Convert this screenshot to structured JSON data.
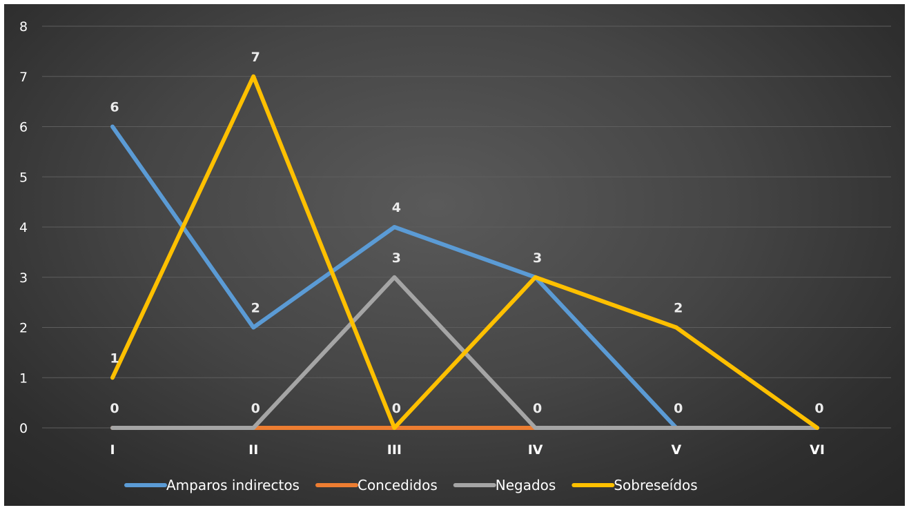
{
  "chart_data": {
    "type": "line",
    "title": "",
    "xlabel": "",
    "ylabel": "",
    "categories": [
      "I",
      "II",
      "III",
      "IV",
      "V",
      "VI"
    ],
    "ylim": [
      0,
      8
    ],
    "yticks": [
      "0",
      "1",
      "2",
      "3",
      "4",
      "5",
      "6",
      "7",
      "8"
    ],
    "grid": true,
    "legend_position": "bottom",
    "series": [
      {
        "name": "Amparos indirectos",
        "color": "#5b9bd5",
        "values": [
          6,
          2,
          4,
          3,
          0,
          0
        ]
      },
      {
        "name": "Concedidos",
        "color": "#ed7d31",
        "values": [
          0,
          0,
          0,
          0,
          0,
          0
        ]
      },
      {
        "name": "Negados",
        "color": "#a5a5a5",
        "values": [
          0,
          0,
          3,
          0,
          0,
          0
        ]
      },
      {
        "name": "Sobreseídos",
        "color": "#ffc000",
        "values": [
          1,
          7,
          0,
          3,
          2,
          0
        ]
      }
    ],
    "data_labels": [
      {
        "category": "I",
        "text": "6"
      },
      {
        "category": "I",
        "text": "1"
      },
      {
        "category": "I",
        "text": "0"
      },
      {
        "category": "II",
        "text": "7"
      },
      {
        "category": "II",
        "text": "2"
      },
      {
        "category": "II",
        "text": "0"
      },
      {
        "category": "III",
        "text": "4"
      },
      {
        "category": "III",
        "text": "3"
      },
      {
        "category": "III",
        "text": "0"
      },
      {
        "category": "IV",
        "text": "3"
      },
      {
        "category": "IV",
        "text": "0"
      },
      {
        "category": "V",
        "text": "2"
      },
      {
        "category": "V",
        "text": "0"
      },
      {
        "category": "VI",
        "text": "0"
      }
    ]
  }
}
